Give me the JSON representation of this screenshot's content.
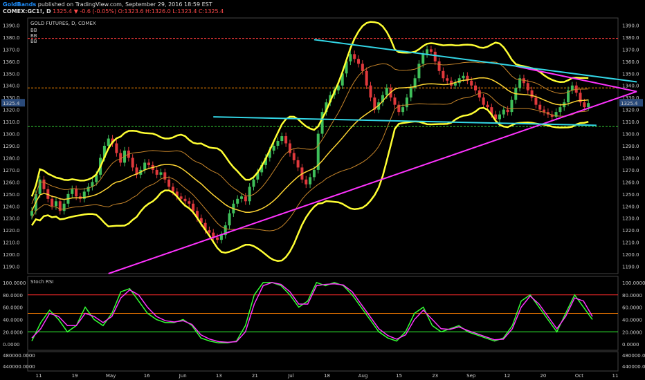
{
  "header": {
    "publisher": "GoldBands",
    "published_text": "published on TradingView.com, September 29, 2016 18:59 EST",
    "symbol": "COMEX:GC1!, D",
    "last": "1325.4",
    "change": "▼ -0.6 (-0.05%)",
    "ohlc": "O:1323.6 H:1326.0 L:1323.4 C:1325.4"
  },
  "chart_data": [
    {
      "type": "candlestick",
      "title": "GOLD FUTURES, D, COMEX",
      "legend": [
        "BB",
        "BB",
        "BB"
      ],
      "ylim": [
        1184,
        1396
      ],
      "y_ticks": [
        1190,
        1200,
        1210,
        1220,
        1230,
        1240,
        1250,
        1260,
        1270,
        1280,
        1290,
        1300,
        1310,
        1320,
        1330,
        1340,
        1350,
        1360,
        1370,
        1380,
        1390
      ],
      "y_tick_labels": [
        "1190.0",
        "1200.0",
        "1210.0",
        "1220.0",
        "1230.0",
        "1240.0",
        "1250.0",
        "1260.0",
        "1270.0",
        "1280.0",
        "1290.0",
        "1300.0",
        "1310.0",
        "1320.0",
        "1330.0",
        "1340.0",
        "1350.0",
        "1360.0",
        "1370.0",
        "1380.0",
        "1390.0"
      ],
      "x_tick_labels": [
        "11",
        "19",
        "May",
        "16",
        "Jun",
        "13",
        "21",
        "Jul",
        "18",
        "Aug",
        "15",
        "23",
        "Sep",
        "12",
        "20",
        "Oct",
        "11"
      ],
      "last_price_label": "1325.4",
      "horizontal_levels": [
        {
          "value": 1379,
          "color": "#ff3b3b"
        },
        {
          "value": 1338,
          "color": "#ff8c00"
        },
        {
          "value": 1306,
          "color": "#33cc33"
        }
      ],
      "closes": [
        1236,
        1250,
        1262,
        1254,
        1246,
        1240,
        1244,
        1236,
        1242,
        1250,
        1254,
        1248,
        1246,
        1252,
        1256,
        1260,
        1266,
        1280,
        1290,
        1296,
        1292,
        1284,
        1276,
        1286,
        1280,
        1272,
        1266,
        1270,
        1276,
        1274,
        1270,
        1266,
        1268,
        1262,
        1256,
        1252,
        1248,
        1246,
        1244,
        1242,
        1236,
        1230,
        1226,
        1220,
        1218,
        1214,
        1212,
        1216,
        1224,
        1234,
        1242,
        1246,
        1248,
        1244,
        1256,
        1262,
        1268,
        1274,
        1280,
        1286,
        1290,
        1294,
        1298,
        1292,
        1284,
        1278,
        1272,
        1262,
        1258,
        1264,
        1270,
        1300,
        1318,
        1326,
        1332,
        1336,
        1340,
        1350,
        1360,
        1366,
        1362,
        1358,
        1352,
        1340,
        1330,
        1320,
        1326,
        1332,
        1338,
        1330,
        1324,
        1318,
        1322,
        1330,
        1338,
        1346,
        1358,
        1366,
        1370,
        1368,
        1360,
        1352,
        1346,
        1344,
        1340,
        1342,
        1346,
        1348,
        1344,
        1340,
        1336,
        1330,
        1324,
        1322,
        1316,
        1312,
        1316,
        1320,
        1318,
        1328,
        1338,
        1346,
        1342,
        1336,
        1330,
        1324,
        1320,
        1318,
        1316,
        1314,
        1318,
        1322,
        1326,
        1336,
        1340,
        1334,
        1326,
        1322,
        1325.4
      ],
      "bb_basis": {
        "note": "Bollinger Bands (20) yellow bands drawn around price"
      },
      "trendlines": [
        {
          "color": "#ff33ff",
          "from": [
            19,
            1184
          ],
          "to": [
            150,
            1335
          ]
        },
        {
          "color": "#ff33ff",
          "from": [
            120,
            1356
          ],
          "to": [
            150,
            1335
          ]
        },
        {
          "color": "#33d6e6",
          "from": [
            70,
            1378
          ],
          "to": [
            150,
            1343
          ]
        },
        {
          "color": "#33d6e6",
          "from": [
            45,
            1314
          ],
          "to": [
            140,
            1307
          ]
        }
      ]
    },
    {
      "type": "line",
      "title": "Stoch RSI",
      "ylim": [
        -10,
        110
      ],
      "y_ticks": [
        0,
        20,
        40,
        60,
        80,
        100
      ],
      "y_tick_labels": [
        "0.0000",
        "20.0000",
        "40.0000",
        "60.0000",
        "80.0000",
        "100.0000"
      ],
      "levels": [
        {
          "value": 80,
          "color": "#ff2a2a"
        },
        {
          "value": 50,
          "color": "#ff7f00"
        },
        {
          "value": 20,
          "color": "#33ff33"
        }
      ],
      "series": [
        {
          "color": "#33ff33",
          "values": [
            5,
            35,
            55,
            40,
            20,
            30,
            60,
            40,
            30,
            50,
            85,
            90,
            70,
            50,
            40,
            35,
            35,
            40,
            30,
            10,
            5,
            2,
            2,
            5,
            30,
            80,
            100,
            100,
            95,
            80,
            60,
            70,
            100,
            95,
            100,
            95,
            80,
            60,
            40,
            20,
            10,
            5,
            20,
            50,
            60,
            30,
            20,
            25,
            30,
            20,
            15,
            10,
            5,
            10,
            30,
            70,
            80,
            60,
            40,
            20,
            50,
            80,
            60,
            40
          ]
        },
        {
          "color": "#ff33ff",
          "values": [
            10,
            25,
            50,
            45,
            30,
            30,
            50,
            45,
            35,
            45,
            75,
            88,
            80,
            60,
            45,
            38,
            36,
            38,
            32,
            15,
            8,
            4,
            3,
            4,
            20,
            65,
            95,
            100,
            97,
            85,
            65,
            65,
            95,
            97,
            98,
            96,
            85,
            65,
            45,
            25,
            14,
            8,
            15,
            40,
            55,
            40,
            25,
            24,
            28,
            22,
            17,
            12,
            7,
            8,
            25,
            60,
            78,
            65,
            45,
            25,
            45,
            75,
            70,
            45
          ]
        }
      ]
    },
    {
      "type": "bar",
      "title": "",
      "y_tick_labels": [
        "480000.0000",
        "440000.0000"
      ]
    }
  ]
}
